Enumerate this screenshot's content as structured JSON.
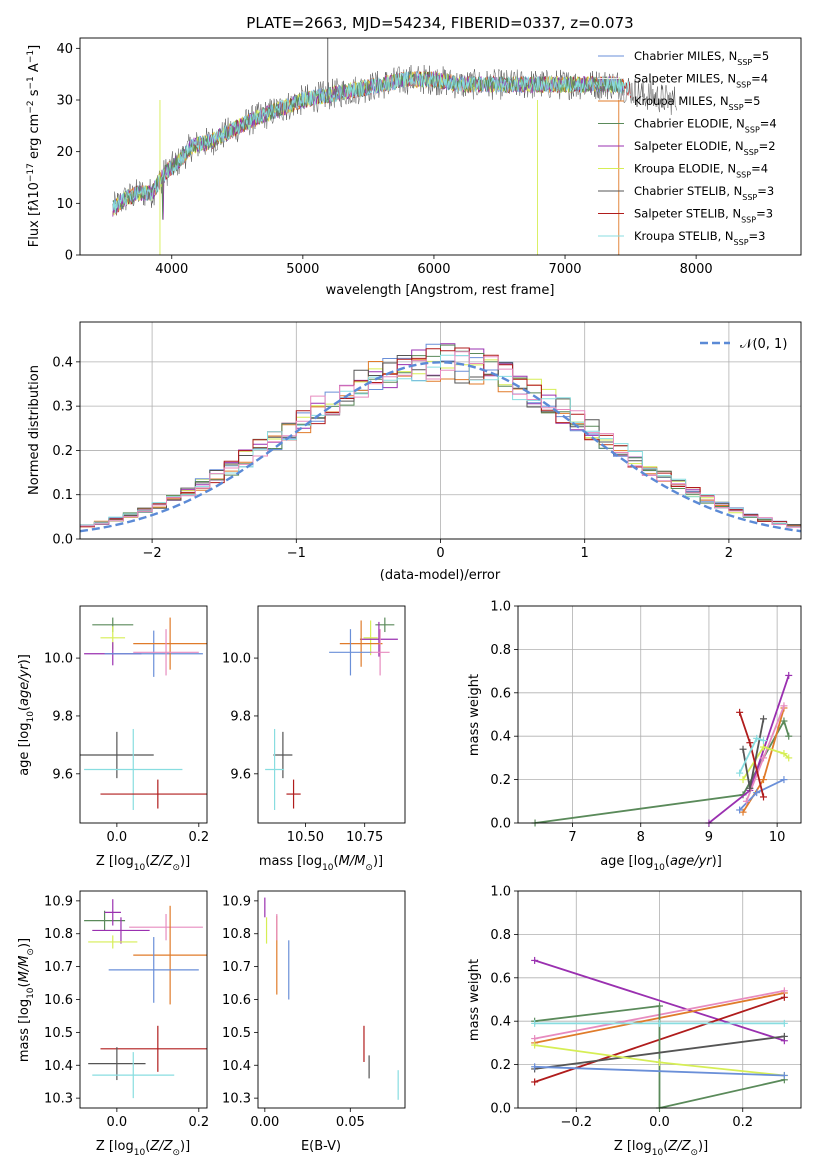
{
  "colors": {
    "chabrier_miles": "#6a8fd8",
    "salpeter_miles": "#e5e5e5",
    "kroupa_miles": "#e07b2a",
    "chabrier_elodie": "#5a8a5a",
    "salpeter_elodie": "#9a30b0",
    "kroupa_elodie": "#d6ee55",
    "chabrier_stelib": "#555555",
    "salpeter_stelib": "#b01c1c",
    "kroupa_stelib": "#88dde0",
    "pink": "#e78bbf",
    "dashed": "#5b8ad6",
    "grid": "#b0b0b0"
  },
  "chart_data": [
    {
      "id": "spectrum",
      "type": "line",
      "title": "PLATE=2663, MJD=54234, FIBERID=0337, z=0.073",
      "xlabel": "wavelength [Angstrom, rest frame]",
      "ylabel": "Flux [f_λ 10^-17 erg cm^-2 s^-1 A^-1]",
      "xlim": [
        3300,
        8800
      ],
      "ylim": [
        0,
        42
      ],
      "xticks": [
        "4000",
        "5000",
        "6000",
        "7000",
        "8000"
      ],
      "yticks": [
        "0",
        "10",
        "20",
        "30",
        "40"
      ],
      "grid": false,
      "legend_position": "upper-right",
      "legend": [
        {
          "label": "Chabrier MILES, N",
          "sub": "SSP",
          "eq": "=5",
          "color_key": "chabrier_miles"
        },
        {
          "label": "Salpeter MILES, N",
          "sub": "SSP",
          "eq": "=4",
          "color_key": "salpeter_miles"
        },
        {
          "label": "Kroupa MILES, N",
          "sub": "SSP",
          "eq": "=5",
          "color_key": "kroupa_miles"
        },
        {
          "label": "Chabrier ELODIE, N",
          "sub": "SSP",
          "eq": "=4",
          "color_key": "chabrier_elodie"
        },
        {
          "label": "Salpeter ELODIE, N",
          "sub": "SSP",
          "eq": "=2",
          "color_key": "salpeter_elodie"
        },
        {
          "label": "Kroupa ELODIE, N",
          "sub": "SSP",
          "eq": "=4",
          "color_key": "kroupa_elodie"
        },
        {
          "label": "Chabrier STELIB, N",
          "sub": "SSP",
          "eq": "=3",
          "color_key": "chabrier_stelib"
        },
        {
          "label": "Salpeter STELIB, N",
          "sub": "SSP",
          "eq": "=3",
          "color_key": "salpeter_stelib"
        },
        {
          "label": "Kroupa STELIB, N",
          "sub": "SSP",
          "eq": "=3",
          "color_key": "kroupa_stelib"
        }
      ],
      "envelope": {
        "x": [
          3550,
          3650,
          3750,
          3850,
          3950,
          4050,
          4150,
          4300,
          4450,
          4600,
          4800,
          5000,
          5200,
          5400,
          5600,
          5800,
          6000,
          6200,
          6400,
          6600,
          6800,
          7000,
          7200,
          7400,
          7600,
          7800
        ],
        "y": [
          9,
          11,
          12,
          12,
          16,
          18,
          21,
          22,
          24,
          26,
          28,
          30,
          31,
          32,
          33,
          34,
          34,
          33,
          33,
          33,
          33,
          33,
          33,
          33,
          31,
          30
        ]
      }
    },
    {
      "id": "residuals",
      "type": "histogram",
      "xlabel": "(data-model)/error",
      "ylabel": "Normed distribution",
      "xlim": [
        -2.5,
        2.5
      ],
      "ylim": [
        0,
        0.49
      ],
      "xticks": [
        "−2",
        "−1",
        "0",
        "1",
        "2"
      ],
      "yticks": [
        "0.0",
        "0.1",
        "0.2",
        "0.3",
        "0.4"
      ],
      "grid": true,
      "legend": [
        {
          "label": "𝒩(0, 1)",
          "color_key": "dashed"
        }
      ],
      "bin_width": 0.1
    },
    {
      "id": "age_vs_z",
      "type": "errorbar",
      "xlabel": "Z [log₁₀(Z/Z☉)]",
      "ylabel": "age  [log₁₀(age/yr)]",
      "xlim": [
        -0.09,
        0.22
      ],
      "ylim": [
        9.43,
        10.18
      ],
      "xticks": [
        "0.0",
        "0.2"
      ],
      "yticks": [
        "9.6",
        "9.8",
        "10.0"
      ],
      "points": [
        {
          "x": -0.01,
          "y": 10.115,
          "xerr": 0.05,
          "yerr": 0.025,
          "color_key": "chabrier_elodie"
        },
        {
          "x": -0.01,
          "y": 10.07,
          "xerr": 0.03,
          "yerr": 0.04,
          "color_key": "kroupa_elodie"
        },
        {
          "x": -0.01,
          "y": 10.015,
          "xerr": 0.07,
          "yerr": 0.04,
          "color_key": "salpeter_elodie"
        },
        {
          "x": 0.09,
          "y": 10.015,
          "xerr": 0.12,
          "yerr": 0.08,
          "color_key": "chabrier_miles"
        },
        {
          "x": 0.13,
          "y": 10.05,
          "xerr": 0.09,
          "yerr": 0.09,
          "color_key": "kroupa_miles"
        },
        {
          "x": 0.12,
          "y": 10.02,
          "xerr": 0.08,
          "yerr": 0.08,
          "color_key": "pink"
        },
        {
          "x": 0.0,
          "y": 9.665,
          "xerr": 0.09,
          "yerr": 0.08,
          "color_key": "chabrier_stelib"
        },
        {
          "x": 0.04,
          "y": 9.615,
          "xerr": 0.12,
          "yerr": 0.14,
          "color_key": "kroupa_stelib"
        },
        {
          "x": 0.1,
          "y": 9.53,
          "xerr": 0.14,
          "yerr": 0.05,
          "color_key": "salpeter_stelib"
        }
      ]
    },
    {
      "id": "age_vs_mass",
      "type": "errorbar",
      "xlabel": "mass [log₁₀(M/M☉)]",
      "ylabel": "",
      "xlim": [
        10.3,
        10.92
      ],
      "ylim": [
        9.43,
        10.18
      ],
      "xticks": [
        "10.50",
        "10.75"
      ],
      "yticks": [
        "9.6",
        "9.8",
        "10.0"
      ],
      "points": [
        {
          "x": 10.835,
          "y": 10.115,
          "xerr": 0.04,
          "yerr": 0.025,
          "color_key": "chabrier_elodie"
        },
        {
          "x": 10.775,
          "y": 10.07,
          "xerr": 0.03,
          "yerr": 0.06,
          "color_key": "kroupa_elodie"
        },
        {
          "x": 10.81,
          "y": 10.065,
          "xerr": 0.08,
          "yerr": 0.06,
          "color_key": "salpeter_elodie"
        },
        {
          "x": 10.735,
          "y": 10.05,
          "xerr": 0.09,
          "yerr": 0.08,
          "color_key": "kroupa_miles"
        },
        {
          "x": 10.69,
          "y": 10.02,
          "xerr": 0.09,
          "yerr": 0.08,
          "color_key": "chabrier_miles"
        },
        {
          "x": 10.815,
          "y": 10.02,
          "xerr": 0.04,
          "yerr": 0.08,
          "color_key": "pink"
        },
        {
          "x": 10.405,
          "y": 9.665,
          "xerr": 0.04,
          "yerr": 0.08,
          "color_key": "chabrier_stelib"
        },
        {
          "x": 10.37,
          "y": 9.615,
          "xerr": 0.04,
          "yerr": 0.14,
          "color_key": "kroupa_stelib"
        },
        {
          "x": 10.45,
          "y": 9.53,
          "xerr": 0.03,
          "yerr": 0.05,
          "color_key": "salpeter_stelib"
        }
      ]
    },
    {
      "id": "weight_vs_age",
      "type": "line",
      "xlabel": "age  [log₁₀(age/yr)]",
      "ylabel": "mass weight",
      "xlim": [
        6.2,
        10.35
      ],
      "ylim": [
        0,
        1
      ],
      "xticks": [
        "7",
        "8",
        "9",
        "10"
      ],
      "yticks": [
        "0.0",
        "0.2",
        "0.4",
        "0.6",
        "0.8",
        "1.0"
      ],
      "grid": true,
      "series": [
        {
          "color_key": "chabrier_elodie",
          "x": [
            6.45,
            9.5,
            10.1,
            10.17
          ],
          "y": [
            0.0,
            0.13,
            0.47,
            0.4
          ]
        },
        {
          "color_key": "salpeter_elodie",
          "x": [
            9.0,
            9.6,
            10.17
          ],
          "y": [
            0.0,
            0.15,
            0.68
          ]
        },
        {
          "color_key": "kroupa_miles",
          "x": [
            9.5,
            9.8,
            10.1
          ],
          "y": [
            0.05,
            0.2,
            0.53
          ]
        },
        {
          "color_key": "chabrier_miles",
          "x": [
            9.45,
            9.7,
            10.1
          ],
          "y": [
            0.06,
            0.14,
            0.2
          ]
        },
        {
          "color_key": "pink",
          "x": [
            9.55,
            9.8,
            10.1
          ],
          "y": [
            0.1,
            0.3,
            0.54
          ]
        },
        {
          "color_key": "kroupa_elodie",
          "x": [
            9.5,
            9.8,
            10.1,
            10.17
          ],
          "y": [
            0.2,
            0.35,
            0.32,
            0.3
          ]
        },
        {
          "color_key": "chabrier_stelib",
          "x": [
            9.5,
            9.6,
            9.8
          ],
          "y": [
            0.34,
            0.16,
            0.48
          ]
        },
        {
          "color_key": "salpeter_stelib",
          "x": [
            9.45,
            9.6,
            9.8
          ],
          "y": [
            0.51,
            0.37,
            0.12
          ]
        },
        {
          "color_key": "kroupa_stelib",
          "x": [
            9.45,
            9.7,
            9.8
          ],
          "y": [
            0.23,
            0.39,
            0.38
          ]
        }
      ]
    },
    {
      "id": "mass_vs_z",
      "type": "errorbar",
      "xlabel": "Z [log₁₀(Z/Z☉)]",
      "ylabel": "mass [log₁₀(M/M☉)]",
      "xlim": [
        -0.09,
        0.22
      ],
      "ylim": [
        10.27,
        10.93
      ],
      "xticks": [
        "0.0",
        "0.2"
      ],
      "yticks": [
        "10.3",
        "10.4",
        "10.5",
        "10.6",
        "10.7",
        "10.8",
        "10.9"
      ],
      "points": [
        {
          "x": -0.03,
          "y": 10.84,
          "xerr": 0.05,
          "yerr": 0.03,
          "color_key": "chabrier_elodie"
        },
        {
          "x": -0.01,
          "y": 10.865,
          "xerr": 0.02,
          "yerr": 0.04,
          "color_key": "salpeter_elodie"
        },
        {
          "x": 0.01,
          "y": 10.81,
          "xerr": 0.07,
          "yerr": 0.04,
          "color_key": "salpeter_elodie"
        },
        {
          "x": -0.01,
          "y": 10.775,
          "xerr": 0.06,
          "yerr": 0.02,
          "color_key": "kroupa_elodie"
        },
        {
          "x": 0.12,
          "y": 10.82,
          "xerr": 0.09,
          "yerr": 0.04,
          "color_key": "pink"
        },
        {
          "x": 0.13,
          "y": 10.735,
          "xerr": 0.09,
          "yerr": 0.15,
          "color_key": "kroupa_miles"
        },
        {
          "x": 0.09,
          "y": 10.69,
          "xerr": 0.11,
          "yerr": 0.1,
          "color_key": "chabrier_miles"
        },
        {
          "x": 0.1,
          "y": 10.45,
          "xerr": 0.14,
          "yerr": 0.07,
          "color_key": "salpeter_stelib"
        },
        {
          "x": 0.0,
          "y": 10.405,
          "xerr": 0.07,
          "yerr": 0.05,
          "color_key": "chabrier_stelib"
        },
        {
          "x": 0.04,
          "y": 10.37,
          "xerr": 0.1,
          "yerr": 0.07,
          "color_key": "kroupa_stelib"
        }
      ]
    },
    {
      "id": "mass_vs_ebv",
      "type": "errorbar",
      "xlabel": "E(B-V)",
      "ylabel": "",
      "xlim": [
        -0.004,
        0.082
      ],
      "ylim": [
        10.27,
        10.93
      ],
      "xticks": [
        "0.00",
        "0.05"
      ],
      "yticks": [
        "10.3",
        "10.4",
        "10.5",
        "10.6",
        "10.7",
        "10.8",
        "10.9"
      ],
      "points": [
        {
          "x": 0.0,
          "y": 10.88,
          "xerr": 0.0,
          "yerr": 0.03,
          "color_key": "salpeter_elodie"
        },
        {
          "x": 0.001,
          "y": 10.81,
          "xerr": 0.0,
          "yerr": 0.04,
          "color_key": "kroupa_elodie"
        },
        {
          "x": 0.007,
          "y": 10.735,
          "xerr": 0.0,
          "yerr": 0.12,
          "color_key": "kroupa_miles"
        },
        {
          "x": 0.007,
          "y": 10.82,
          "xerr": 0.0,
          "yerr": 0.04,
          "color_key": "pink"
        },
        {
          "x": 0.014,
          "y": 10.69,
          "xerr": 0.0,
          "yerr": 0.09,
          "color_key": "chabrier_miles"
        },
        {
          "x": 0.058,
          "y": 10.465,
          "xerr": 0.0,
          "yerr": 0.055,
          "color_key": "salpeter_stelib"
        },
        {
          "x": 0.061,
          "y": 10.395,
          "xerr": 0.0,
          "yerr": 0.035,
          "color_key": "chabrier_stelib"
        },
        {
          "x": 0.078,
          "y": 10.34,
          "xerr": 0.0,
          "yerr": 0.045,
          "color_key": "kroupa_stelib"
        }
      ]
    },
    {
      "id": "weight_vs_z",
      "type": "line",
      "xlabel": "Z [log₁₀(Z/Z☉)]",
      "ylabel": "mass weight",
      "xlim": [
        -0.34,
        0.34
      ],
      "ylim": [
        0,
        1
      ],
      "xticks": [
        "−0.2",
        "0.0",
        "0.2"
      ],
      "yticks": [
        "0.0",
        "0.2",
        "0.4",
        "0.6",
        "0.8",
        "1.0"
      ],
      "grid": true,
      "series": [
        {
          "color_key": "salpeter_elodie",
          "x": [
            -0.3,
            0.3
          ],
          "y": [
            0.68,
            0.31
          ]
        },
        {
          "color_key": "kroupa_miles",
          "x": [
            -0.3,
            0.3
          ],
          "y": [
            0.3,
            0.53
          ]
        },
        {
          "color_key": "pink",
          "x": [
            -0.3,
            0.3
          ],
          "y": [
            0.32,
            0.54
          ]
        },
        {
          "color_key": "salpeter_stelib",
          "x": [
            -0.3,
            0.3
          ],
          "y": [
            0.12,
            0.51
          ]
        },
        {
          "color_key": "chabrier_elodie",
          "x": [
            -0.3,
            0.0,
            0.0,
            0.3
          ],
          "y": [
            0.4,
            0.47,
            0.0,
            0.13
          ]
        },
        {
          "color_key": "chabrier_stelib",
          "x": [
            -0.3,
            0.3
          ],
          "y": [
            0.18,
            0.33
          ]
        },
        {
          "color_key": "kroupa_elodie",
          "x": [
            -0.3,
            0.0,
            0.3
          ],
          "y": [
            0.29,
            0.21,
            0.15
          ]
        },
        {
          "color_key": "chabrier_miles",
          "x": [
            -0.3,
            0.3
          ],
          "y": [
            0.19,
            0.15
          ]
        },
        {
          "color_key": "kroupa_stelib",
          "x": [
            -0.3,
            0.0,
            0.3
          ],
          "y": [
            0.39,
            0.39,
            0.39
          ]
        }
      ]
    }
  ]
}
